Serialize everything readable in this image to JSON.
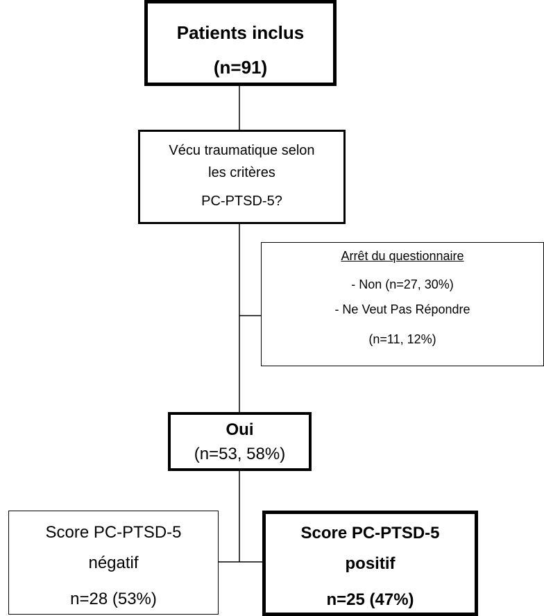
{
  "nodes": [
    {
      "lines": [
        "Patients inclus",
        "(n=91)"
      ]
    },
    {
      "lines": [
        "Vécu traumatique selon",
        "les critères",
        "PC-PTSD-5?"
      ]
    },
    {
      "lines": [
        "Arrêt du questionnaire",
        "- Non (n=27, 30%)",
        "- Ne Veut Pas Répondre",
        "(n=11, 12%)"
      ]
    },
    {
      "lines": [
        "Oui",
        "(n=53, 58%)"
      ]
    },
    {
      "lines": [
        "Score PC-PTSD-5",
        "négatif",
        "n=28 (53%)"
      ]
    },
    {
      "lines": [
        "Score PC-PTSD-5",
        "positif",
        "n=25 (47%)"
      ]
    }
  ]
}
